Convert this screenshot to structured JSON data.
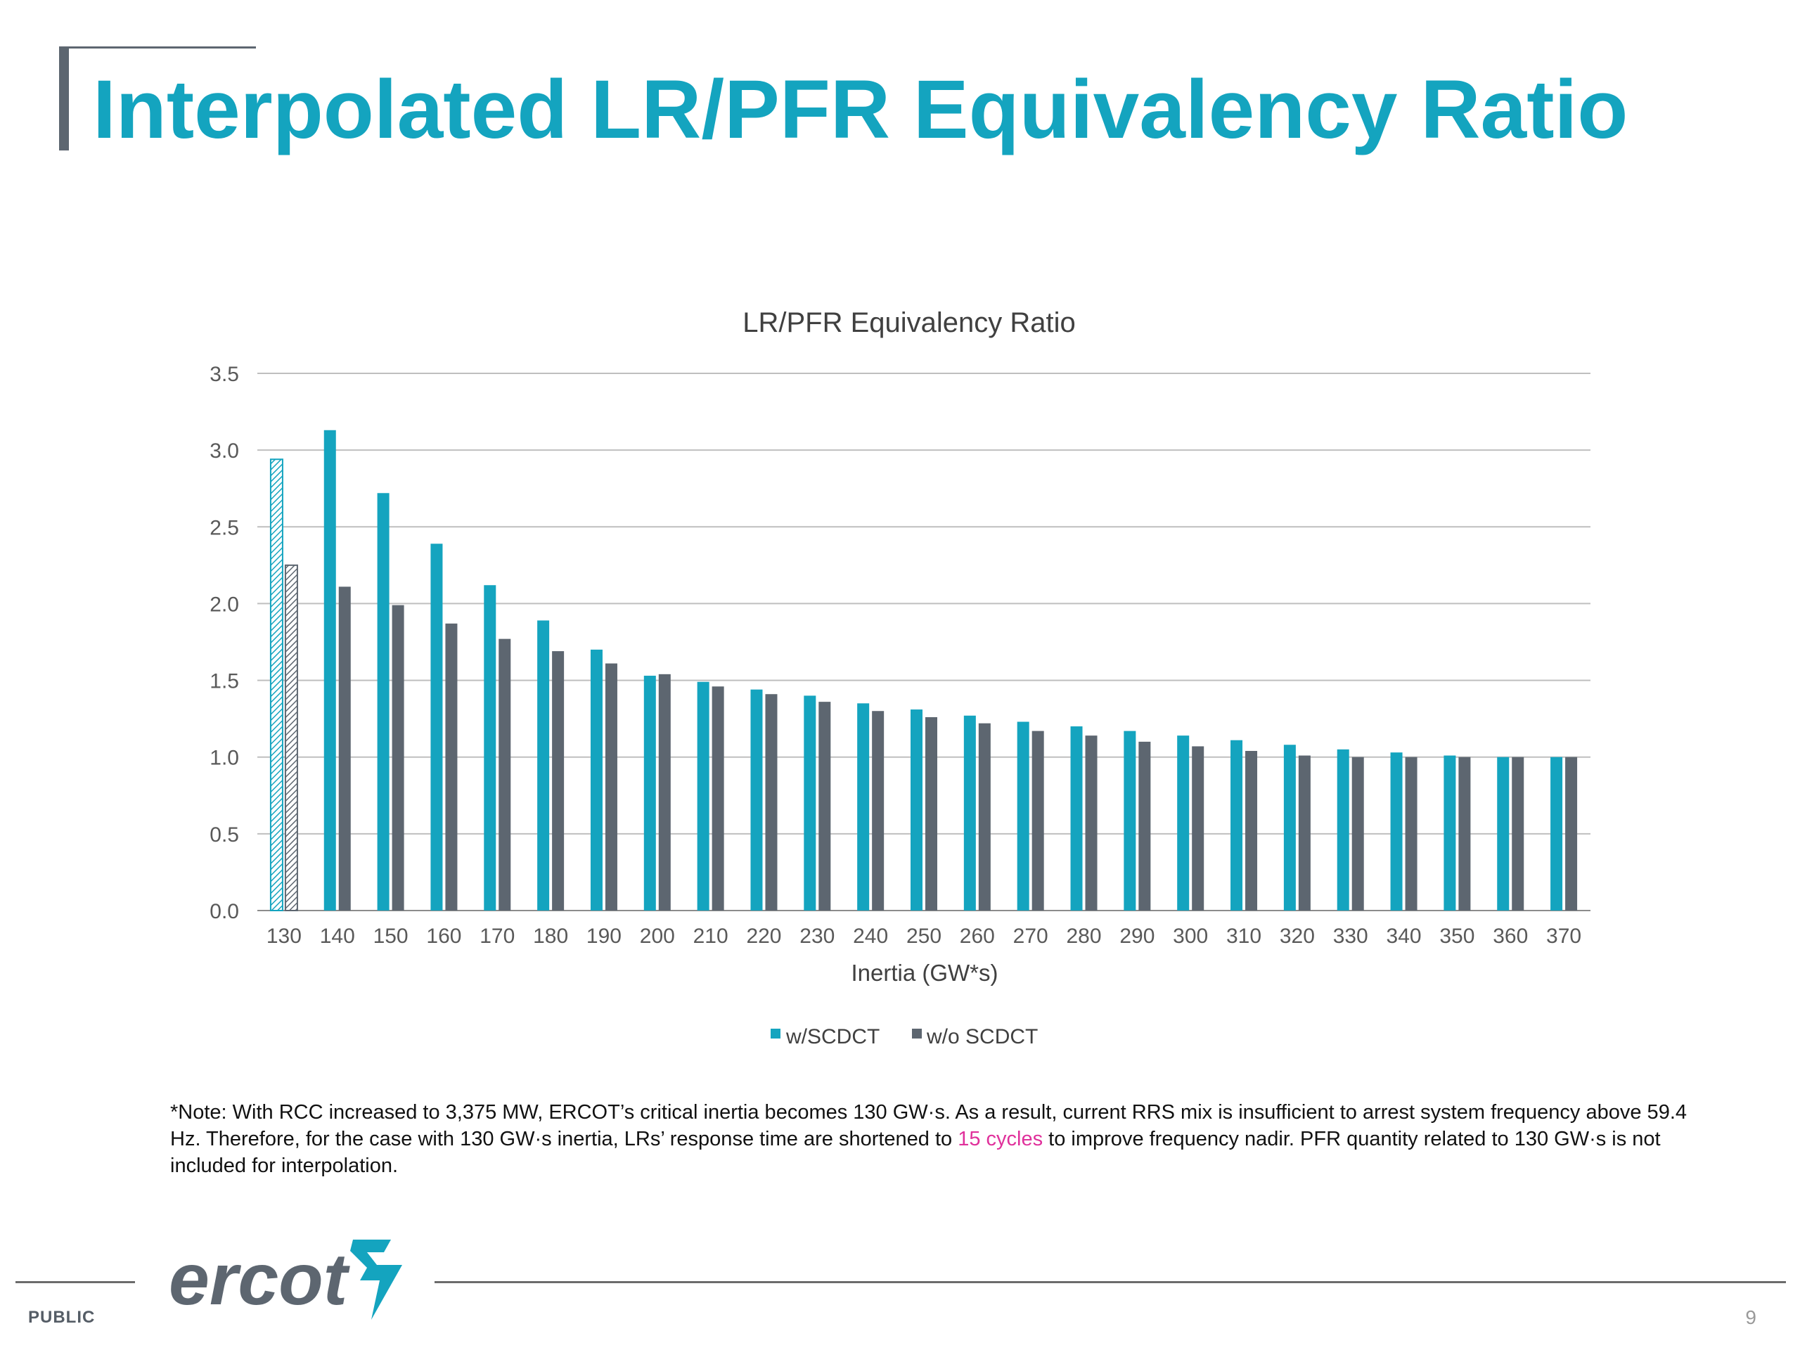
{
  "slide": {
    "title": "Interpolated LR/PFR Equivalency Ratio",
    "note": {
      "before": "*Note: With RCC increased to 3,375 MW, ERCOT’s critical inertia becomes 130 GW·s. As a result, current RRS mix is insufficient to arrest system frequency above 59.4 Hz. Therefore, for the case with 130 GW·s inertia, LRs’ response time are shortened to ",
      "highlight": "15 cycles",
      "after": " to improve frequency nadir. PFR quantity related to 130 GW·s is not included for interpolation."
    },
    "logo_text": "ercot",
    "footer_label": "PUBLIC",
    "page_number": "9",
    "colors": {
      "title": "#14a4bf",
      "accent_bar": "#5d6670",
      "note_highlight": "#e0309b"
    }
  },
  "chart_data": {
    "type": "bar",
    "title": "LR/PFR Equivalency Ratio",
    "xlabel": "Inertia (GW*s)",
    "ylabel": "",
    "ylim": [
      0,
      3.5
    ],
    "yticks": [
      "0.0",
      "0.5",
      "1.0",
      "1.5",
      "2.0",
      "2.5",
      "3.0",
      "3.5"
    ],
    "grid": "horizontal",
    "legend_position": "bottom",
    "categories": [
      "130",
      "140",
      "150",
      "160",
      "170",
      "180",
      "190",
      "200",
      "210",
      "220",
      "230",
      "240",
      "250",
      "260",
      "270",
      "280",
      "290",
      "300",
      "310",
      "320",
      "330",
      "340",
      "350",
      "360",
      "370"
    ],
    "series": [
      {
        "name": "w/SCDCT",
        "color": "#14a4bf",
        "values": [
          2.94,
          3.13,
          2.72,
          2.39,
          2.12,
          1.89,
          1.7,
          1.53,
          1.49,
          1.44,
          1.4,
          1.35,
          1.31,
          1.27,
          1.23,
          1.2,
          1.17,
          1.14,
          1.11,
          1.08,
          1.05,
          1.03,
          1.01,
          1.0,
          1.0
        ]
      },
      {
        "name": "w/o SCDCT",
        "color": "#5d6670",
        "values": [
          2.25,
          2.11,
          1.99,
          1.87,
          1.77,
          1.69,
          1.61,
          1.54,
          1.46,
          1.41,
          1.36,
          1.3,
          1.26,
          1.22,
          1.17,
          1.14,
          1.1,
          1.07,
          1.04,
          1.01,
          1.0,
          1.0,
          1.0,
          1.0,
          1.0
        ]
      }
    ],
    "hatched_category": "130"
  }
}
